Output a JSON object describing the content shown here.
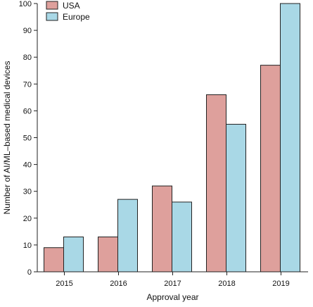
{
  "chart_data": {
    "type": "bar",
    "categories": [
      "2015",
      "2016",
      "2017",
      "2018",
      "2019"
    ],
    "series": [
      {
        "name": "USA",
        "values": [
          9,
          13,
          32,
          66,
          77
        ],
        "color": "#dea09c"
      },
      {
        "name": "Europe",
        "values": [
          13,
          27,
          26,
          55,
          100
        ],
        "color": "#a9d8e6"
      }
    ],
    "xlabel": "Approval year",
    "ylabel": "Number of AI/ML–based medical devices",
    "ylim": [
      0,
      100
    ],
    "yticks": [
      "0",
      "10",
      "20",
      "30",
      "40",
      "50",
      "60",
      "70",
      "80",
      "90",
      "100"
    ],
    "grid": false,
    "legend_position": "top-left"
  }
}
